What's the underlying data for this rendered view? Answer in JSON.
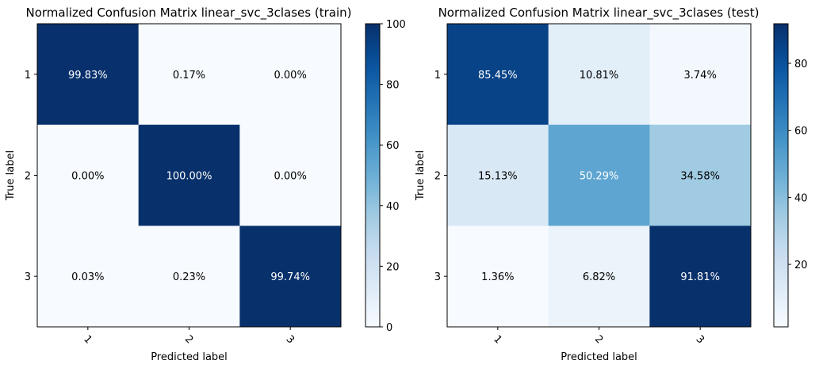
{
  "chart_data": [
    {
      "type": "heatmap",
      "title": "Normalized Confusion Matrix linear_svc_3clases (train)",
      "xlabel": "Predicted label",
      "ylabel": "True label",
      "x_categories": [
        "1",
        "2",
        "3"
      ],
      "y_categories": [
        "1",
        "2",
        "3"
      ],
      "values": [
        [
          99.83,
          0.17,
          0.0
        ],
        [
          0.0,
          100.0,
          0.0
        ],
        [
          0.03,
          0.23,
          99.74
        ]
      ],
      "cell_labels": [
        [
          "99.83%",
          "0.17%",
          "0.00%"
        ],
        [
          "0.00%",
          "100.00%",
          "0.00%"
        ],
        [
          "0.03%",
          "0.23%",
          "99.74%"
        ]
      ],
      "colorbar": {
        "min": 0,
        "max": 100,
        "ticks": [
          "0",
          "20",
          "40",
          "60",
          "80",
          "100"
        ]
      }
    },
    {
      "type": "heatmap",
      "title": "Normalized Confusion Matrix linear_svc_3clases (test)",
      "xlabel": "Predicted label",
      "ylabel": "True label",
      "x_categories": [
        "1",
        "2",
        "3"
      ],
      "y_categories": [
        "1",
        "2",
        "3"
      ],
      "values": [
        [
          85.45,
          10.81,
          3.74
        ],
        [
          15.13,
          50.29,
          34.58
        ],
        [
          1.36,
          6.82,
          91.81
        ]
      ],
      "cell_labels": [
        [
          "85.45%",
          "10.81%",
          "3.74%"
        ],
        [
          "15.13%",
          "50.29%",
          "34.58%"
        ],
        [
          "1.36%",
          "6.82%",
          "91.81%"
        ]
      ],
      "colorbar": {
        "min": 1.36,
        "max": 91.81,
        "ticks": [
          "20",
          "40",
          "60",
          "80"
        ]
      }
    }
  ],
  "colormap": "Blues"
}
